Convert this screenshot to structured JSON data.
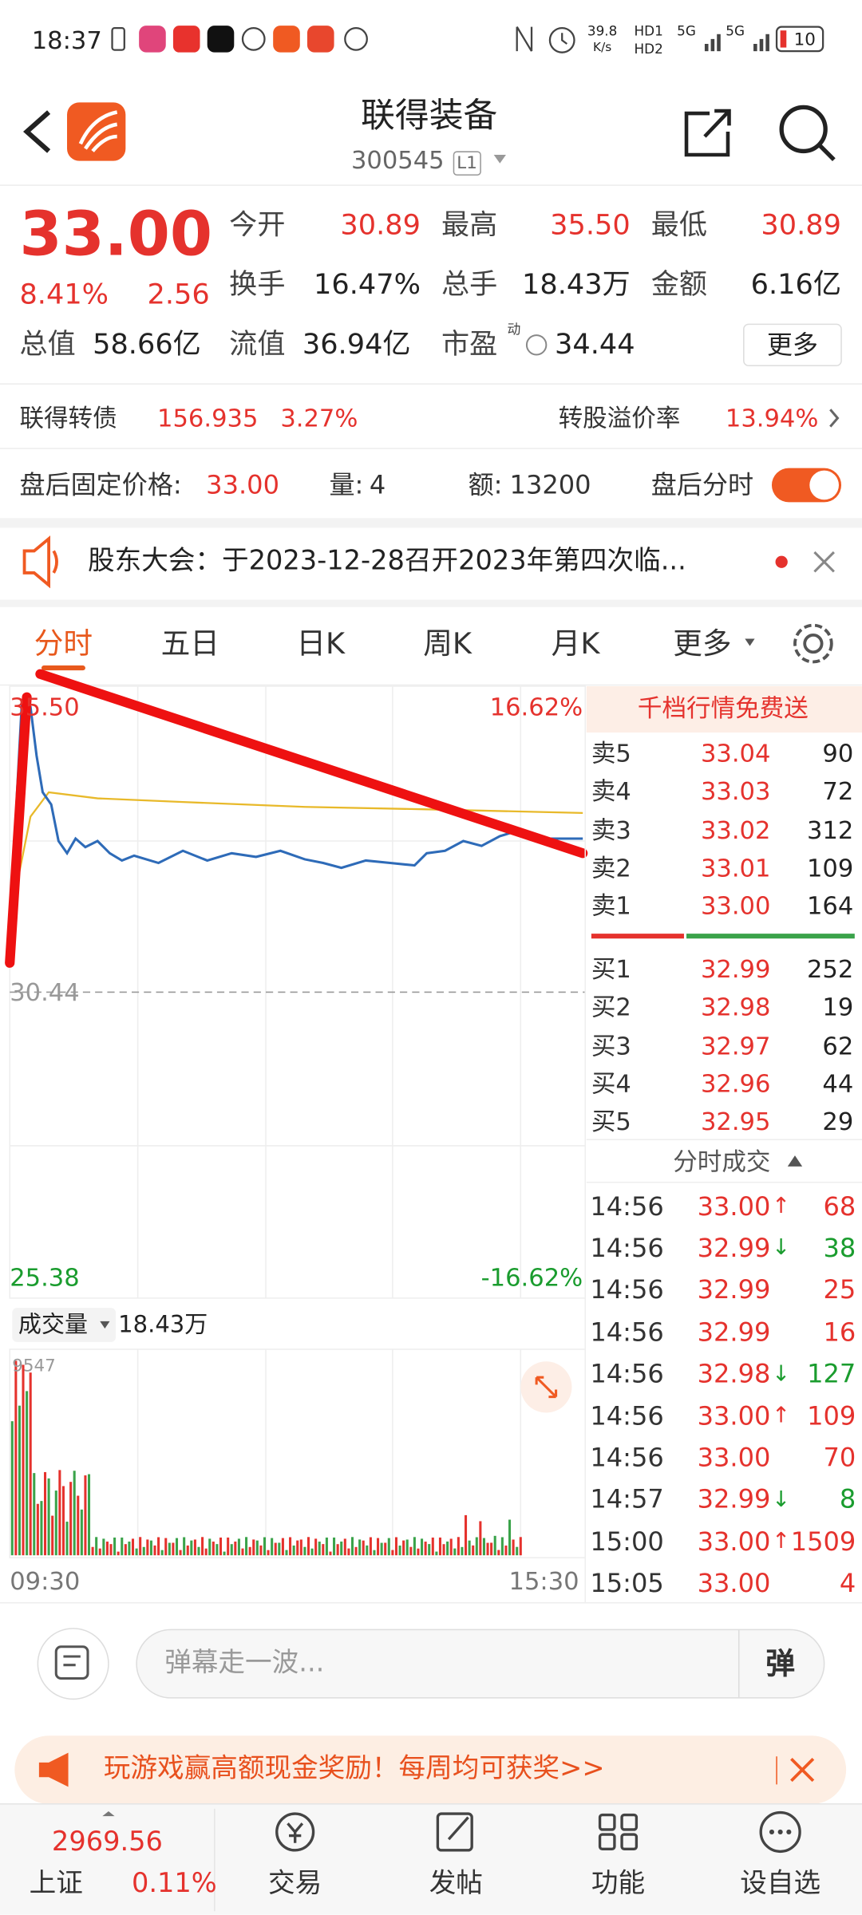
{
  "status_bar": {
    "time": "18:37",
    "speed": "39.8",
    "speed_unit": "K/s",
    "network": [
      "HD1",
      "HD2"
    ],
    "signal": [
      "5G",
      "5G"
    ],
    "battery": "10"
  },
  "header": {
    "title": "联得装备",
    "code": "300545",
    "level": "L1"
  },
  "quote": {
    "price": "33.00",
    "change_pct": "8.41%",
    "change": "2.56",
    "stats": [
      {
        "label": "今开",
        "value": "30.89",
        "color": "#e5322d"
      },
      {
        "label": "最高",
        "value": "35.50",
        "color": "#e5322d"
      },
      {
        "label": "最低",
        "value": "30.89",
        "color": "#e5322d"
      },
      {
        "label": "换手",
        "value": "16.47%",
        "color": "#222222"
      },
      {
        "label": "总手",
        "value": "18.43万",
        "color": "#222222"
      },
      {
        "label": "金额",
        "value": "6.16亿",
        "color": "#222222"
      }
    ],
    "market_cap_label": "总值",
    "market_cap": "58.66亿",
    "float_cap_label": "流值",
    "float_cap": "36.94亿",
    "pe_label": "市盈",
    "pe_sup": "动",
    "pe": "34.44",
    "more": "更多"
  },
  "bond": {
    "name": "联得转债",
    "price": "156.935",
    "change_pct": "3.27%",
    "premium_label": "转股溢价率",
    "premium": "13.94%"
  },
  "after_hours": {
    "label": "盘后固定价格:",
    "price": "33.00",
    "volume_label": "量:",
    "volume": "4",
    "amount_label": "额:",
    "amount": "13200",
    "toggle_label": "盘后分时"
  },
  "notice": "股东大会：于2023-12-28召开2023年第四次临...",
  "tabs": [
    "分时",
    "五日",
    "日K",
    "周K",
    "月K",
    "更多"
  ],
  "chart": {
    "price_high": "35.50",
    "pct_high": "16.62%",
    "price_base": "30.44",
    "price_low": "25.38",
    "pct_low": "-16.62%",
    "volume_label": "成交量",
    "volume": "18.43万",
    "volume_max": "9547",
    "time_start": "09:30",
    "time_end": "15:30"
  },
  "order_book": {
    "title": "千档行情免费送",
    "asks": [
      {
        "label": "卖5",
        "price": "33.04",
        "volume": "90"
      },
      {
        "label": "卖4",
        "price": "33.03",
        "volume": "72"
      },
      {
        "label": "卖3",
        "price": "33.02",
        "volume": "312"
      },
      {
        "label": "卖2",
        "price": "33.01",
        "volume": "109"
      },
      {
        "label": "卖1",
        "price": "33.00",
        "volume": "164"
      }
    ],
    "bids": [
      {
        "label": "买1",
        "price": "32.99",
        "volume": "252"
      },
      {
        "label": "买2",
        "price": "32.98",
        "volume": "19"
      },
      {
        "label": "买3",
        "price": "32.97",
        "volume": "62"
      },
      {
        "label": "买4",
        "price": "32.96",
        "volume": "44"
      },
      {
        "label": "买5",
        "price": "32.95",
        "volume": "29"
      }
    ]
  },
  "trades": {
    "title": "分时成交",
    "rows": [
      {
        "time": "14:56",
        "price": "33.00",
        "arrow": "↑",
        "volume": "68"
      },
      {
        "time": "14:56",
        "price": "32.99",
        "arrow": "↓",
        "volume": "38"
      },
      {
        "time": "14:56",
        "price": "32.99",
        "volume": "25"
      },
      {
        "time": "14:56",
        "price": "32.99",
        "volume": "16"
      },
      {
        "time": "14:56",
        "price": "32.98",
        "arrow": "↓",
        "volume": "127"
      },
      {
        "time": "14:56",
        "price": "33.00",
        "arrow": "↑",
        "volume": "109"
      },
      {
        "time": "14:56",
        "price": "33.00",
        "volume": "70"
      },
      {
        "time": "14:57",
        "price": "32.99",
        "arrow": "↓",
        "volume": "8"
      },
      {
        "time": "15:00",
        "price": "33.00",
        "arrow": "↑",
        "volume": "1509"
      },
      {
        "time": "15:05",
        "price": "33.00",
        "volume": "4"
      }
    ]
  },
  "comment": {
    "placeholder": "弹幕走一波...",
    "button": "弹"
  },
  "ad": "玩游戏赢高额现金奖励！每周均可获奖>>",
  "bottom_nav": {
    "index_value": "2969.56",
    "index_name": "上证",
    "index_change": "0.11%",
    "items": [
      "交易",
      "发帖",
      "功能",
      "设自选"
    ]
  }
}
